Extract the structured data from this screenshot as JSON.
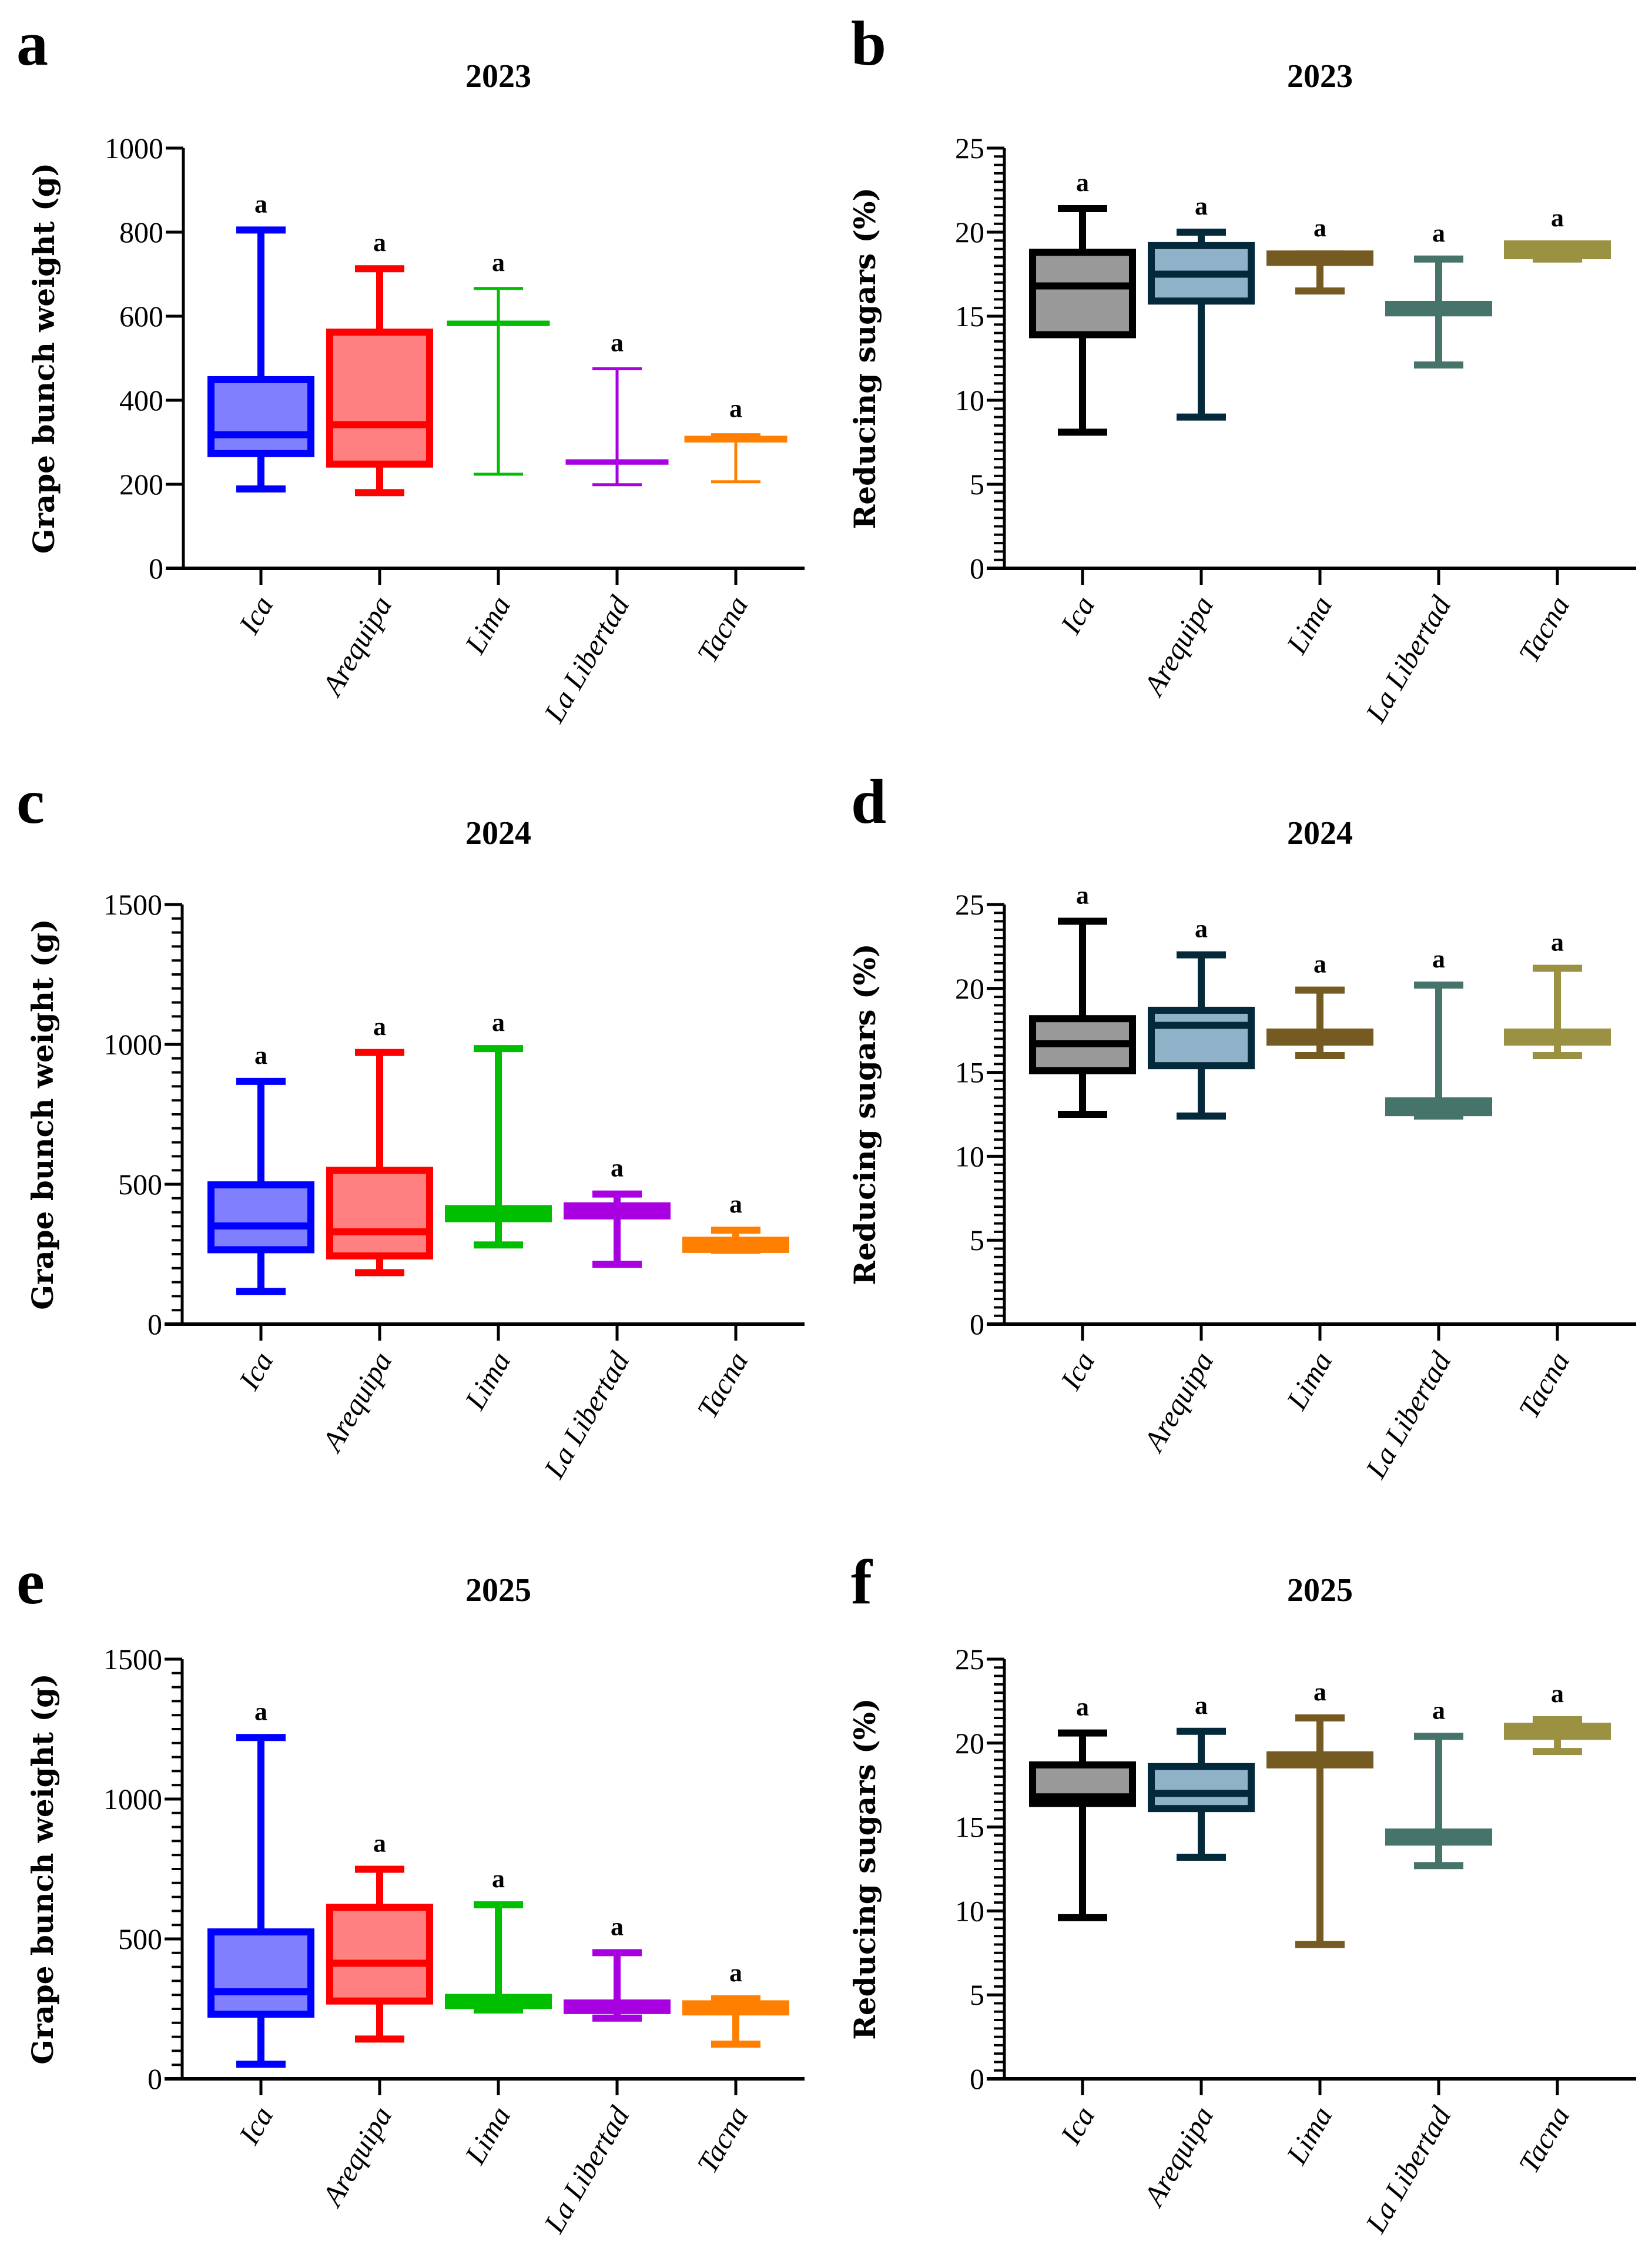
{
  "chart_data": [
    {
      "panel": "a",
      "type": "box",
      "title": "2023",
      "ylabel": "Grape bunch weight (g)",
      "xlabel": "",
      "ylim": [
        0,
        1000
      ],
      "yticks": [
        0,
        200,
        400,
        600,
        800,
        1000
      ],
      "minor_step": null,
      "categories": [
        "Ica",
        "Arequipa",
        "Lima",
        "La Libertad",
        "Tacna"
      ],
      "colors": {
        "stroke": [
          "#0000FF",
          "#FF0000",
          "#00BE00",
          "#A800E0",
          "#FF8000"
        ],
        "fill": [
          "#8080FF",
          "#FF8080",
          "#7FDF7F",
          "#D37FEF",
          "#FFBF7F"
        ]
      },
      "series": [
        {
          "name": "Ica",
          "min": 189,
          "q1": 273,
          "median": 318,
          "q3": 449,
          "max": 805,
          "label": "a",
          "weight": "thick"
        },
        {
          "name": "Arequipa",
          "min": 180,
          "q1": 248,
          "median": 342,
          "q3": 562,
          "max": 713,
          "label": "a",
          "weight": "thick"
        },
        {
          "name": "Lima",
          "min": 224,
          "q1": 580,
          "median": 583,
          "q3": 586,
          "max": 666,
          "label": "a",
          "weight": "thin"
        },
        {
          "name": "La Libertad",
          "min": 199,
          "q1": 250,
          "median": 253,
          "q3": 256,
          "max": 475,
          "label": "a",
          "weight": "thin"
        },
        {
          "name": "Tacna",
          "min": 206,
          "q1": 303,
          "median": 307,
          "q3": 312,
          "max": 318,
          "label": "a",
          "weight": "thin"
        }
      ]
    },
    {
      "panel": "b",
      "type": "box",
      "title": "2023",
      "ylabel": "Reducing sugars (%)",
      "xlabel": "",
      "ylim": [
        0,
        25
      ],
      "yticks": [
        0,
        5,
        10,
        15,
        20,
        25
      ],
      "minor_step": 0.5,
      "categories": [
        "Ica",
        "Arequipa",
        "Lima",
        "La Libertad",
        "Tacna"
      ],
      "colors": {
        "stroke": [
          "#000000",
          "#03293A",
          "#755A22",
          "#46736A",
          "#9A9143"
        ],
        "fill": [
          "#999999",
          "#8FB2C9",
          "#755A22",
          "#46736A",
          "#9A9143"
        ]
      },
      "series": [
        {
          "name": "Ica",
          "min": 8.1,
          "q1": 13.9,
          "median": 16.8,
          "q3": 18.8,
          "max": 21.4,
          "label": "a",
          "weight": "thick"
        },
        {
          "name": "Arequipa",
          "min": 9.0,
          "q1": 15.9,
          "median": 17.5,
          "q3": 19.2,
          "max": 20.0,
          "label": "a",
          "weight": "thick"
        },
        {
          "name": "Lima",
          "min": 16.5,
          "q1": 18.2,
          "median": 18.4,
          "q3": 18.7,
          "max": 18.7,
          "label": "a",
          "weight": "thick"
        },
        {
          "name": "La Libertad",
          "min": 12.1,
          "q1": 15.2,
          "median": 15.5,
          "q3": 15.7,
          "max": 18.4,
          "label": "a",
          "weight": "thick"
        },
        {
          "name": "Tacna",
          "min": 18.4,
          "q1": 18.6,
          "median": 18.9,
          "q3": 19.3,
          "max": 19.3,
          "label": "a",
          "weight": "thick"
        }
      ]
    },
    {
      "panel": "c",
      "type": "box",
      "title": "2024",
      "ylabel": "Grape bunch weight (g)",
      "xlabel": "",
      "ylim": [
        0,
        1500
      ],
      "yticks": [
        0,
        500,
        1000,
        1500
      ],
      "minor_step": 50,
      "categories": [
        "Ica",
        "Arequipa",
        "Lima",
        "La Libertad",
        "Tacna"
      ],
      "colors": {
        "stroke": [
          "#0000FF",
          "#FF0000",
          "#00BE00",
          "#A800E0",
          "#FF8000"
        ],
        "fill": [
          "#8080FF",
          "#FF8080",
          "#00BE00",
          "#A800E0",
          "#FF8000"
        ]
      },
      "series": [
        {
          "name": "Ica",
          "min": 117,
          "q1": 266,
          "median": 351,
          "q3": 498,
          "max": 868,
          "label": "a",
          "weight": "thick"
        },
        {
          "name": "Arequipa",
          "min": 184,
          "q1": 244,
          "median": 330,
          "q3": 550,
          "max": 971,
          "label": "a",
          "weight": "thick"
        },
        {
          "name": "Lima",
          "min": 283,
          "q1": 377,
          "median": 394,
          "q3": 413,
          "max": 985,
          "label": "a",
          "weight": "thick"
        },
        {
          "name": "La Libertad",
          "min": 214,
          "q1": 387,
          "median": 407,
          "q3": 423,
          "max": 465,
          "label": "a",
          "weight": "thick"
        },
        {
          "name": "Tacna",
          "min": 264,
          "q1": 267,
          "median": 284,
          "q3": 300,
          "max": 336,
          "label": "a",
          "weight": "thick"
        }
      ]
    },
    {
      "panel": "d",
      "type": "box",
      "title": "2024",
      "ylabel": "Reducing sugars (%)",
      "xlabel": "",
      "ylim": [
        0,
        25
      ],
      "yticks": [
        0,
        5,
        10,
        15,
        20,
        25
      ],
      "minor_step": 0.5,
      "categories": [
        "Ica",
        "Arequipa",
        "Lima",
        "La Libertad",
        "Tacna"
      ],
      "colors": {
        "stroke": [
          "#000000",
          "#03293A",
          "#755A22",
          "#46736A",
          "#9A9143"
        ],
        "fill": [
          "#999999",
          "#8FB2C9",
          "#755A22",
          "#46736A",
          "#9A9143"
        ]
      },
      "series": [
        {
          "name": "Ica",
          "min": 12.5,
          "q1": 15.1,
          "median": 16.7,
          "q3": 18.2,
          "max": 24.0,
          "label": "a",
          "weight": "thick"
        },
        {
          "name": "Arequipa",
          "min": 12.4,
          "q1": 15.4,
          "median": 17.8,
          "q3": 18.7,
          "max": 22.0,
          "label": "a",
          "weight": "thick"
        },
        {
          "name": "Lima",
          "min": 16.0,
          "q1": 16.8,
          "median": 17.1,
          "q3": 17.4,
          "max": 19.9,
          "label": "a",
          "weight": "thick"
        },
        {
          "name": "La Libertad",
          "min": 12.4,
          "q1": 12.6,
          "median": 12.9,
          "q3": 13.3,
          "max": 20.2,
          "label": "a",
          "weight": "thick"
        },
        {
          "name": "Tacna",
          "min": 16.0,
          "q1": 16.8,
          "median": 17.1,
          "q3": 17.4,
          "max": 21.2,
          "label": "a",
          "weight": "thick"
        }
      ]
    },
    {
      "panel": "e",
      "type": "box",
      "title": "2025",
      "ylabel": "Grape bunch weight (g)",
      "xlabel": "",
      "ylim": [
        0,
        1500
      ],
      "yticks": [
        0,
        500,
        1000,
        1500
      ],
      "minor_step": 50,
      "categories": [
        "Ica",
        "Arequipa",
        "Lima",
        "La Libertad",
        "Tacna"
      ],
      "colors": {
        "stroke": [
          "#0000FF",
          "#FF0000",
          "#00BE00",
          "#A800E0",
          "#FF8000"
        ],
        "fill": [
          "#8080FF",
          "#FF8080",
          "#00BE00",
          "#A800E0",
          "#FF8000"
        ]
      },
      "series": [
        {
          "name": "Ica",
          "min": 52,
          "q1": 231,
          "median": 311,
          "q3": 525,
          "max": 1220,
          "label": "a",
          "weight": "thick"
        },
        {
          "name": "Arequipa",
          "min": 142,
          "q1": 278,
          "median": 413,
          "q3": 613,
          "max": 749,
          "label": "a",
          "weight": "thick"
        },
        {
          "name": "Lima",
          "min": 246,
          "q1": 262,
          "median": 275,
          "q3": 291,
          "max": 622,
          "label": "a",
          "weight": "thick"
        },
        {
          "name": "La Libertad",
          "min": 217,
          "q1": 244,
          "median": 258,
          "q3": 271,
          "max": 451,
          "label": "a",
          "weight": "thick"
        },
        {
          "name": "Tacna",
          "min": 124,
          "q1": 239,
          "median": 255,
          "q3": 268,
          "max": 286,
          "label": "a",
          "weight": "thick"
        }
      ]
    },
    {
      "panel": "f",
      "type": "box",
      "title": "2025",
      "ylabel": "Reducing sugars (%)",
      "xlabel": "",
      "ylim": [
        0,
        25
      ],
      "yticks": [
        0,
        5,
        10,
        15,
        20,
        25
      ],
      "minor_step": 0.5,
      "categories": [
        "Ica",
        "Arequipa",
        "Lima",
        "La Libertad",
        "Tacna"
      ],
      "colors": {
        "stroke": [
          "#000000",
          "#03293A",
          "#755A22",
          "#46736A",
          "#9A9143"
        ],
        "fill": [
          "#999999",
          "#8FB2C9",
          "#755A22",
          "#46736A",
          "#9A9143"
        ]
      },
      "series": [
        {
          "name": "Ica",
          "min": 9.6,
          "q1": 16.4,
          "median": 16.8,
          "q3": 18.7,
          "max": 20.6,
          "label": "a",
          "weight": "thick"
        },
        {
          "name": "Arequipa",
          "min": 13.2,
          "q1": 16.1,
          "median": 17.0,
          "q3": 18.6,
          "max": 20.7,
          "label": "a",
          "weight": "thick"
        },
        {
          "name": "Lima",
          "min": 8.0,
          "q1": 18.7,
          "median": 19.0,
          "q3": 19.3,
          "max": 21.5,
          "label": "a",
          "weight": "thick"
        },
        {
          "name": "La Libertad",
          "min": 12.7,
          "q1": 14.1,
          "median": 14.4,
          "q3": 14.7,
          "max": 20.4,
          "label": "a",
          "weight": "thick"
        },
        {
          "name": "Tacna",
          "min": 19.5,
          "q1": 20.4,
          "median": 20.8,
          "q3": 21.0,
          "max": 21.4,
          "label": "a",
          "weight": "thick"
        }
      ]
    }
  ]
}
